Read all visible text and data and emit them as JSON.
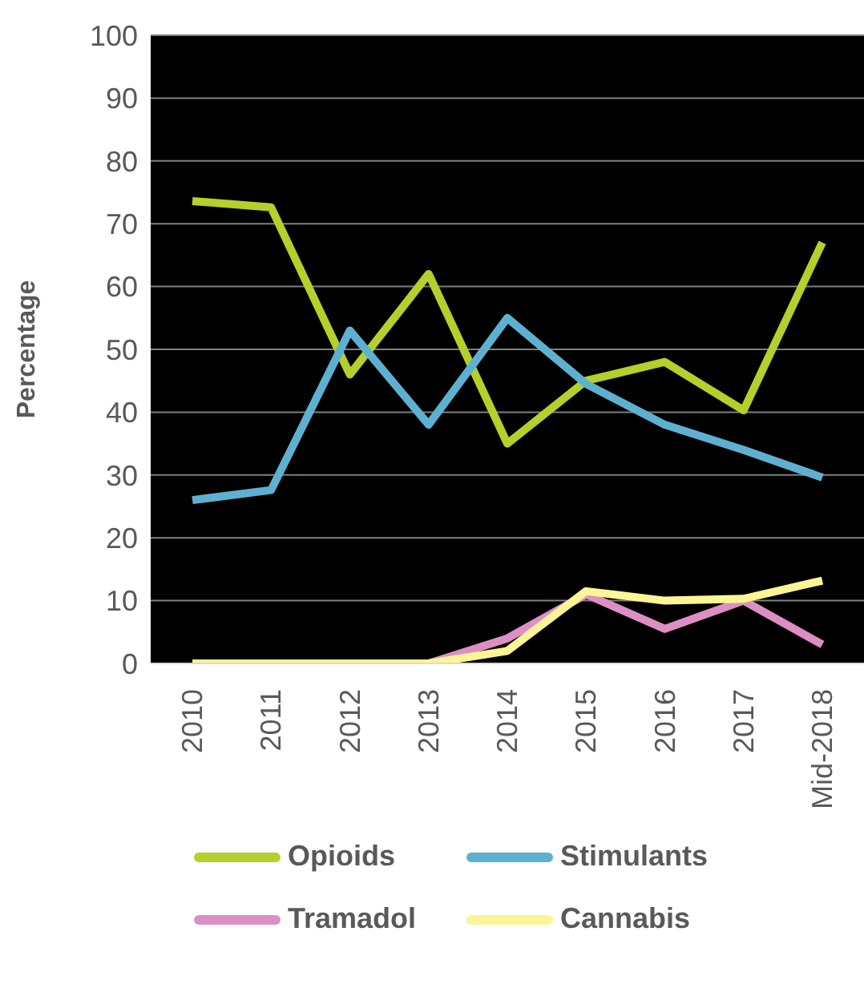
{
  "chart_data": {
    "type": "line",
    "ylabel": "Percentage",
    "categories": [
      "2010",
      "2011",
      "2012",
      "2013",
      "2014",
      "2015",
      "2016",
      "2017",
      "Mid-2018"
    ],
    "series": [
      {
        "name": "Opioids",
        "color": "#b5cf2b",
        "values": [
          73.6,
          72.6,
          46,
          62,
          35,
          45,
          48,
          40.3,
          67
        ]
      },
      {
        "name": "Stimulants",
        "color": "#5eb0d0",
        "values": [
          26,
          27.6,
          53,
          38,
          55,
          44.5,
          38,
          34,
          29.6
        ]
      },
      {
        "name": "Tramadol",
        "color": "#dd8fc3",
        "values": [
          null,
          null,
          0,
          0,
          4,
          11,
          5.5,
          10,
          3
        ]
      },
      {
        "name": "Cannabis",
        "color": "#fbf595",
        "values": [
          0,
          0,
          0,
          0,
          2,
          11.5,
          10,
          10.3,
          13.2
        ]
      }
    ],
    "ylim": [
      0,
      100
    ],
    "yticks": [
      0,
      10,
      20,
      30,
      40,
      50,
      60,
      70,
      80,
      90,
      100
    ],
    "grid": "y",
    "legend": "bottom",
    "marker": "none",
    "line_style": "solid"
  }
}
